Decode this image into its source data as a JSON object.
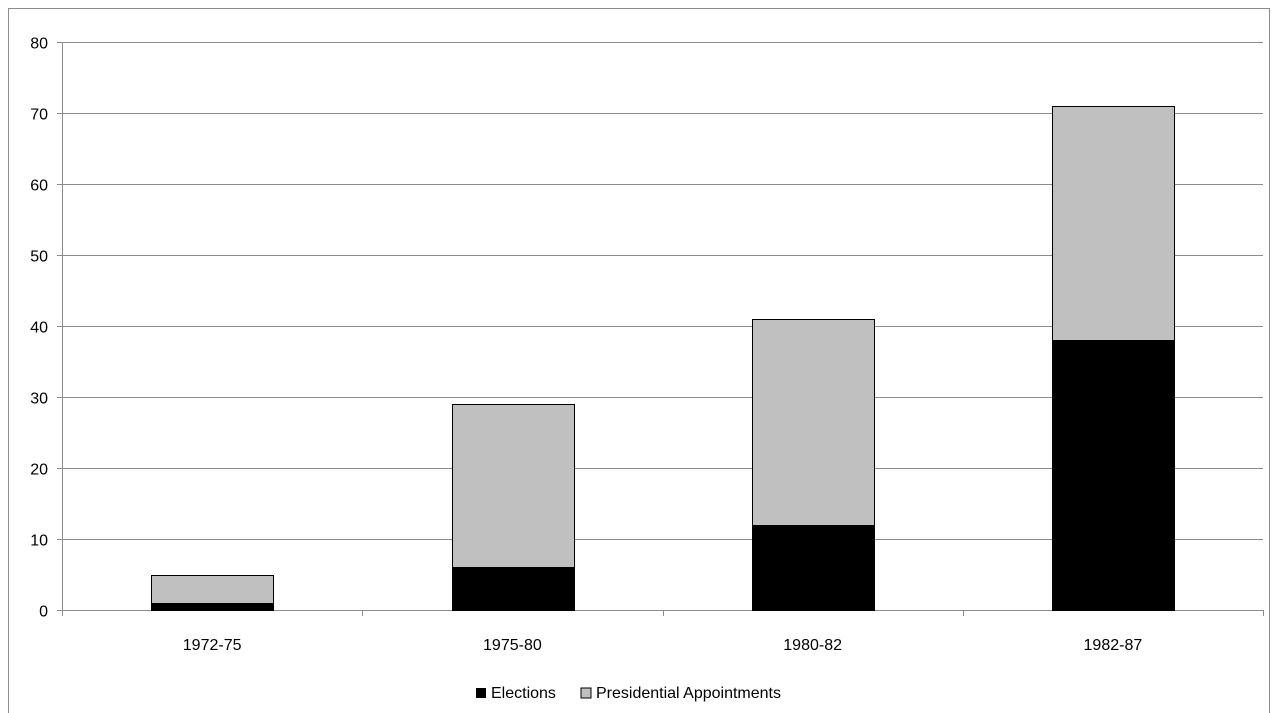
{
  "chart_data": {
    "type": "bar",
    "stacked": true,
    "categories": [
      "1972-75",
      "1975-80",
      "1980-82",
      "1982-87"
    ],
    "series": [
      {
        "name": "Elections",
        "values": [
          1,
          6,
          12,
          38
        ],
        "color": "#000000"
      },
      {
        "name": "Presidential Appointments",
        "values": [
          4,
          23,
          29,
          33
        ],
        "color": "#c0c0c0"
      }
    ],
    "ylim": [
      0,
      80
    ],
    "yticks": [
      0,
      10,
      20,
      30,
      40,
      50,
      60,
      70,
      80
    ],
    "grid": true,
    "legend_position": "bottom",
    "title": "",
    "xlabel": "",
    "ylabel": ""
  }
}
